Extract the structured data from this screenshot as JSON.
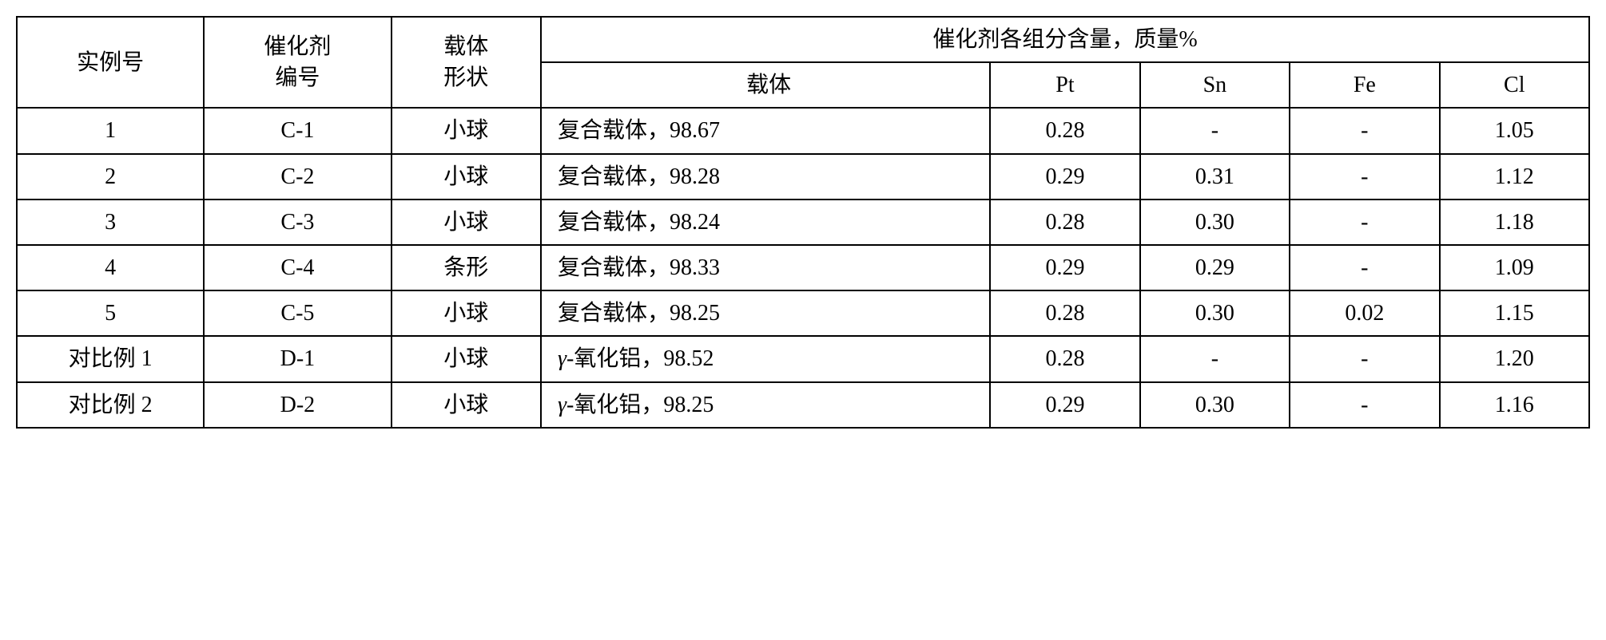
{
  "table": {
    "headers": {
      "example_no": "实例号",
      "catalyst_no": "催化剂\n编号",
      "catalyst_no_line1": "催化剂",
      "catalyst_no_line2": "编号",
      "carrier_shape": "载体\n形状",
      "carrier_shape_line1": "载体",
      "carrier_shape_line2": "形状",
      "composition_title": "催化剂各组分含量，质量%",
      "carrier": "载体",
      "pt": "Pt",
      "sn": "Sn",
      "fe": "Fe",
      "cl": "Cl"
    },
    "rows": [
      {
        "example_no": "1",
        "catalyst_no": "C-1",
        "carrier_shape": "小球",
        "carrier": "复合载体，98.67",
        "pt": "0.28",
        "sn": "-",
        "fe": "-",
        "cl": "1.05"
      },
      {
        "example_no": "2",
        "catalyst_no": "C-2",
        "carrier_shape": "小球",
        "carrier": "复合载体，98.28",
        "pt": "0.29",
        "sn": "0.31",
        "fe": "-",
        "cl": "1.12"
      },
      {
        "example_no": "3",
        "catalyst_no": "C-3",
        "carrier_shape": "小球",
        "carrier": "复合载体，98.24",
        "pt": "0.28",
        "sn": "0.30",
        "fe": "-",
        "cl": "1.18"
      },
      {
        "example_no": "4",
        "catalyst_no": "C-4",
        "carrier_shape": "条形",
        "carrier": "复合载体，98.33",
        "pt": "0.29",
        "sn": "0.29",
        "fe": "-",
        "cl": "1.09"
      },
      {
        "example_no": "5",
        "catalyst_no": "C-5",
        "carrier_shape": "小球",
        "carrier": "复合载体，98.25",
        "pt": "0.28",
        "sn": "0.30",
        "fe": "0.02",
        "cl": "1.15"
      },
      {
        "example_no": "对比例 1",
        "catalyst_no": "D-1",
        "carrier_shape": "小球",
        "carrier_prefix": "γ",
        "carrier_suffix": "-氧化铝，98.52",
        "pt": "0.28",
        "sn": "-",
        "fe": "-",
        "cl": "1.20"
      },
      {
        "example_no": "对比例 2",
        "catalyst_no": "D-2",
        "carrier_shape": "小球",
        "carrier_prefix": "γ",
        "carrier_suffix": "-氧化铝，98.25",
        "pt": "0.29",
        "sn": "0.30",
        "fe": "-",
        "cl": "1.16"
      }
    ]
  },
  "styling": {
    "border_color": "#000000",
    "background_color": "#ffffff",
    "text_color": "#000000",
    "font_size": 28,
    "border_width": 2
  }
}
